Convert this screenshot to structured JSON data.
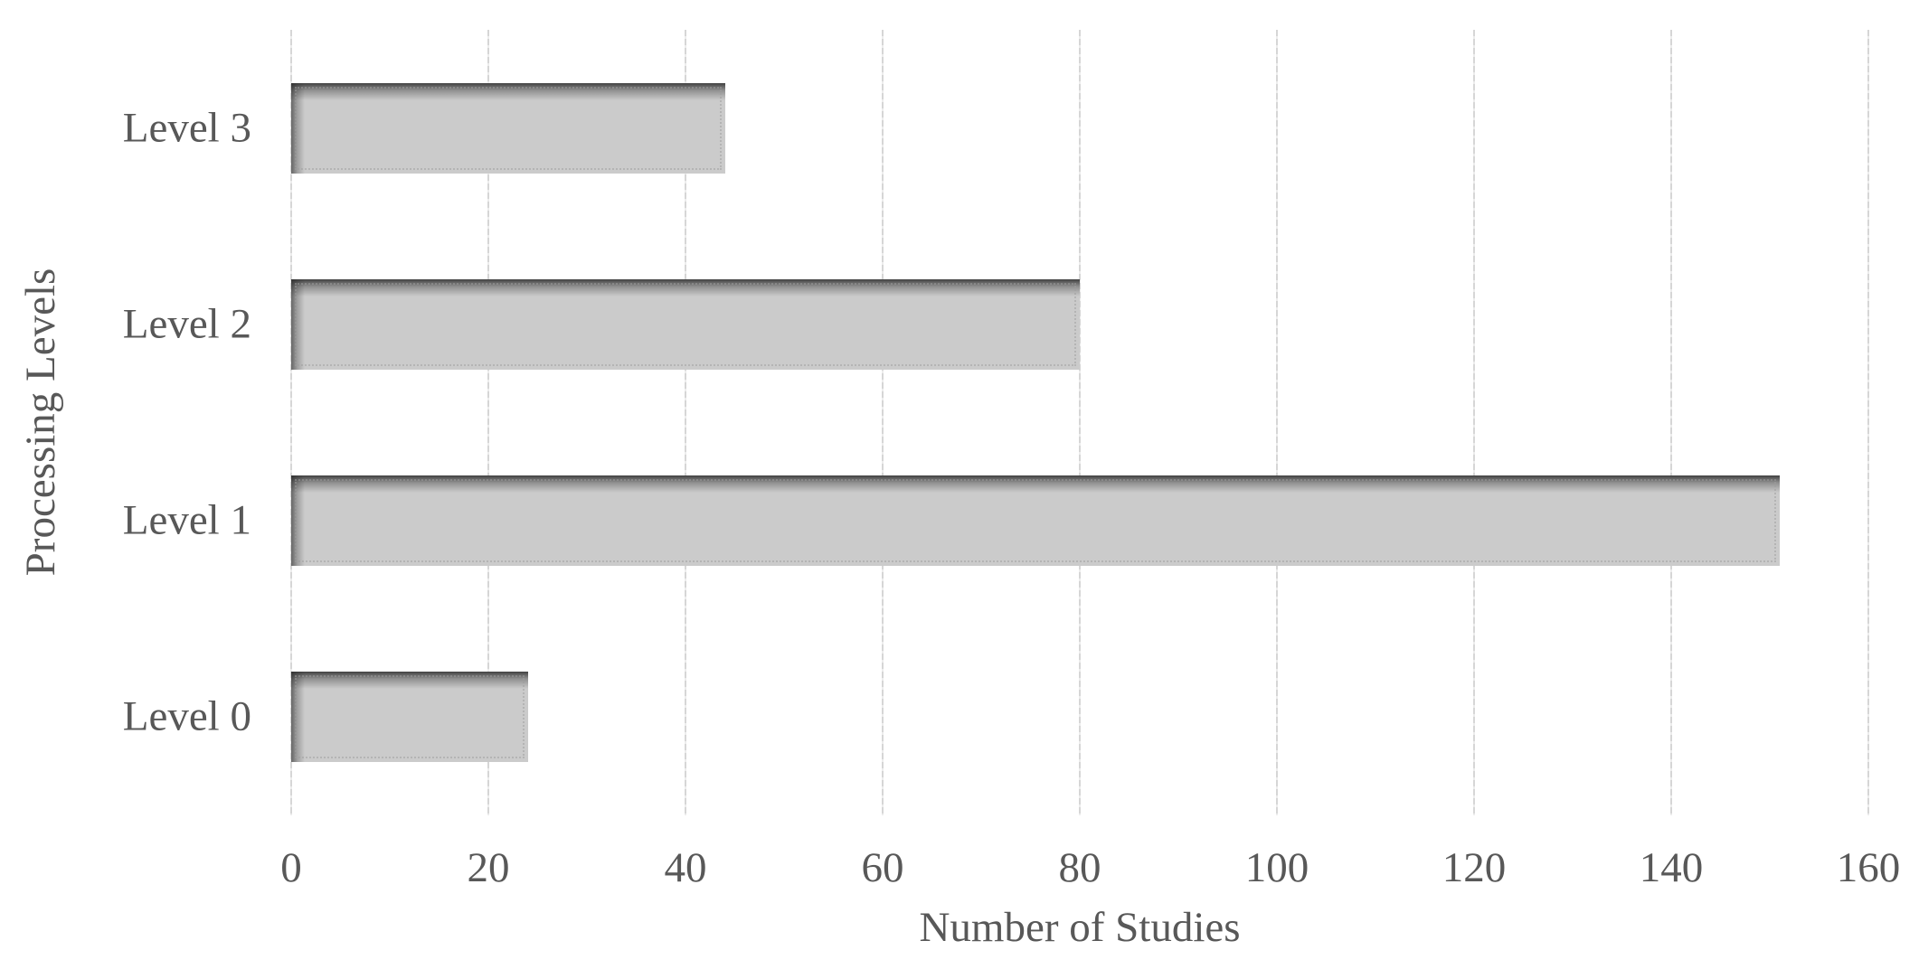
{
  "chart_data": {
    "type": "bar",
    "orientation": "horizontal",
    "title": "",
    "xlabel": "Number of Studies",
    "ylabel": "Processing Levels",
    "categories": [
      "Level 3",
      "Level 2",
      "Level 1",
      "Level 0"
    ],
    "values": [
      44,
      80,
      151,
      24
    ],
    "xlim": [
      0,
      160
    ],
    "xticks": [
      0,
      20,
      40,
      60,
      80,
      100,
      120,
      140,
      160
    ],
    "grid": "vertical-gridlines-on",
    "legend": "none",
    "colors": {
      "bar_fill": "#cbcbcb",
      "bar_shadow": "#232323",
      "gridline": "#d6d6d6",
      "text": "#585858",
      "background": "#ffffff"
    }
  }
}
